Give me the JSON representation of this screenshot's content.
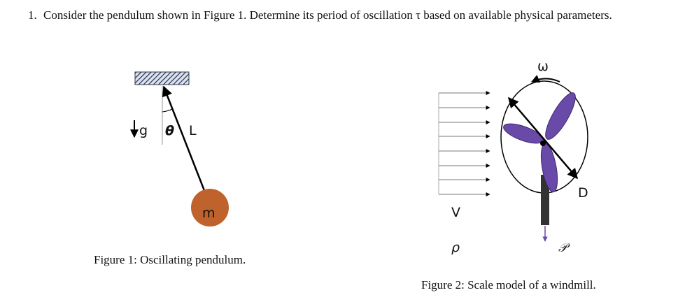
{
  "question": {
    "number": "1.",
    "text": "Consider the pendulum shown in Figure 1. Determine its period of oscillation τ based on available physical parameters."
  },
  "figure1": {
    "labels": {
      "gravity": "g",
      "angle": "θ",
      "length": "L",
      "mass": "m"
    },
    "caption": "Figure 1: Oscillating pendulum."
  },
  "figure2": {
    "labels": {
      "omega": "ω",
      "velocity": "V",
      "density": "ρ",
      "diameter": "D",
      "power": "𝒫"
    },
    "caption": "Figure 2: Scale model of a windmill."
  }
}
